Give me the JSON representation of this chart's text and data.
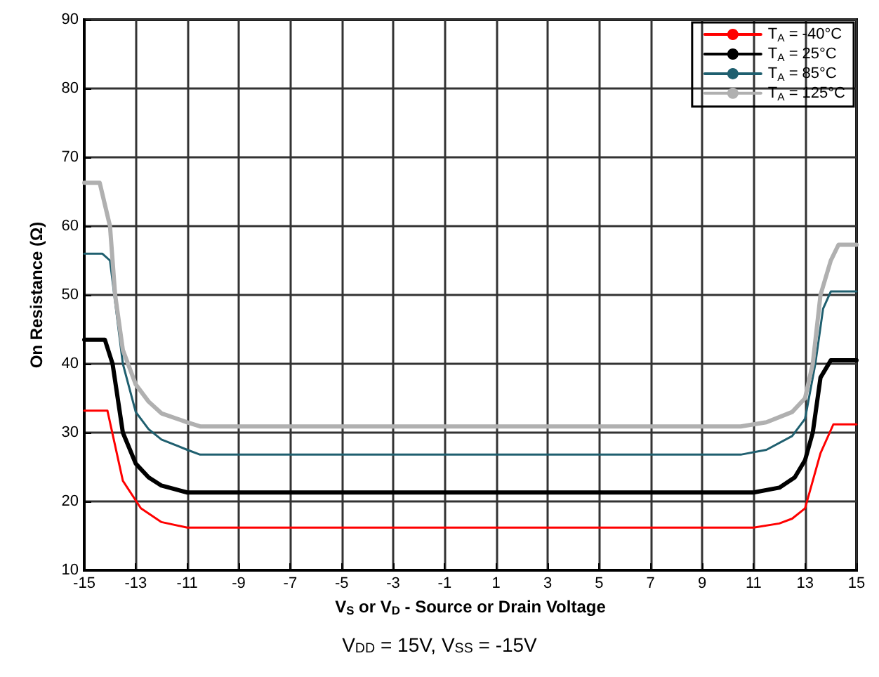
{
  "chart_data": {
    "type": "line",
    "xlabel": "V$_{S}$ or V$_{D}$ - Source or Drain Voltage",
    "ylabel": "On Resistance (Ω)",
    "annotations": [
      "V$_{DD}$ = 15V, V$_{SS}$ = -15V"
    ],
    "xlim": [
      -15,
      15
    ],
    "xticks": [
      -15,
      -13,
      -11,
      -9,
      -7,
      -5,
      -3,
      -1,
      1,
      3,
      5,
      7,
      9,
      11,
      13,
      15
    ],
    "ylim": [
      10,
      90
    ],
    "yticks": [
      10,
      20,
      30,
      40,
      50,
      60,
      70,
      80,
      90
    ],
    "grid": true,
    "legend": "top right",
    "marker": "none",
    "line_style": "solid",
    "series": [
      {
        "name": "T$_{A}$ = -40°C",
        "color": "#ff0000",
        "x": [
          -15,
          -14.1,
          -13.5,
          -12.8,
          -12,
          -11,
          11,
          12,
          12.5,
          13,
          13.6,
          14.1,
          15
        ],
        "values": [
          33.2,
          33.2,
          23,
          19,
          17,
          16.2,
          16.2,
          16.8,
          17.5,
          19,
          27,
          31.2,
          31.2
        ]
      },
      {
        "name": "T$_{A}$ = 25°C",
        "color": "#000000",
        "x": [
          -15,
          -14.2,
          -13.9,
          -13.5,
          -13,
          -12.5,
          -12,
          -11,
          11,
          12,
          12.6,
          13,
          13.3,
          13.6,
          14,
          15
        ],
        "values": [
          43.5,
          43.5,
          40,
          30,
          25.5,
          23.5,
          22.3,
          21.3,
          21.3,
          22,
          23.5,
          26,
          30,
          38,
          40.5,
          40.5
        ]
      },
      {
        "name": "T$_{A}$ = 85°C",
        "color": "#1f5f6f",
        "x": [
          -15,
          -14.3,
          -14,
          -13.5,
          -13,
          -12.5,
          -12,
          -11,
          -10.5,
          10.5,
          11.5,
          12.5,
          13,
          13.4,
          13.7,
          14,
          15
        ],
        "values": [
          56,
          56,
          55,
          40,
          33,
          30.5,
          29,
          27.5,
          26.8,
          26.8,
          27.5,
          29.5,
          32,
          40,
          48,
          50.5,
          50.5
        ]
      },
      {
        "name": "T$_{A}$ = 125°C",
        "color": "#b0b0b0",
        "x": [
          -15,
          -14.4,
          -14,
          -13.8,
          -13.5,
          -13,
          -12.5,
          -12,
          -11,
          -10.5,
          10.5,
          11.5,
          12.5,
          13,
          13.3,
          13.6,
          14,
          14.3,
          15
        ],
        "values": [
          66.3,
          66.3,
          60,
          50,
          42,
          37,
          34.5,
          32.8,
          31.5,
          30.9,
          30.9,
          31.5,
          33,
          35,
          40,
          50,
          55,
          57.3,
          57.3
        ]
      }
    ]
  }
}
